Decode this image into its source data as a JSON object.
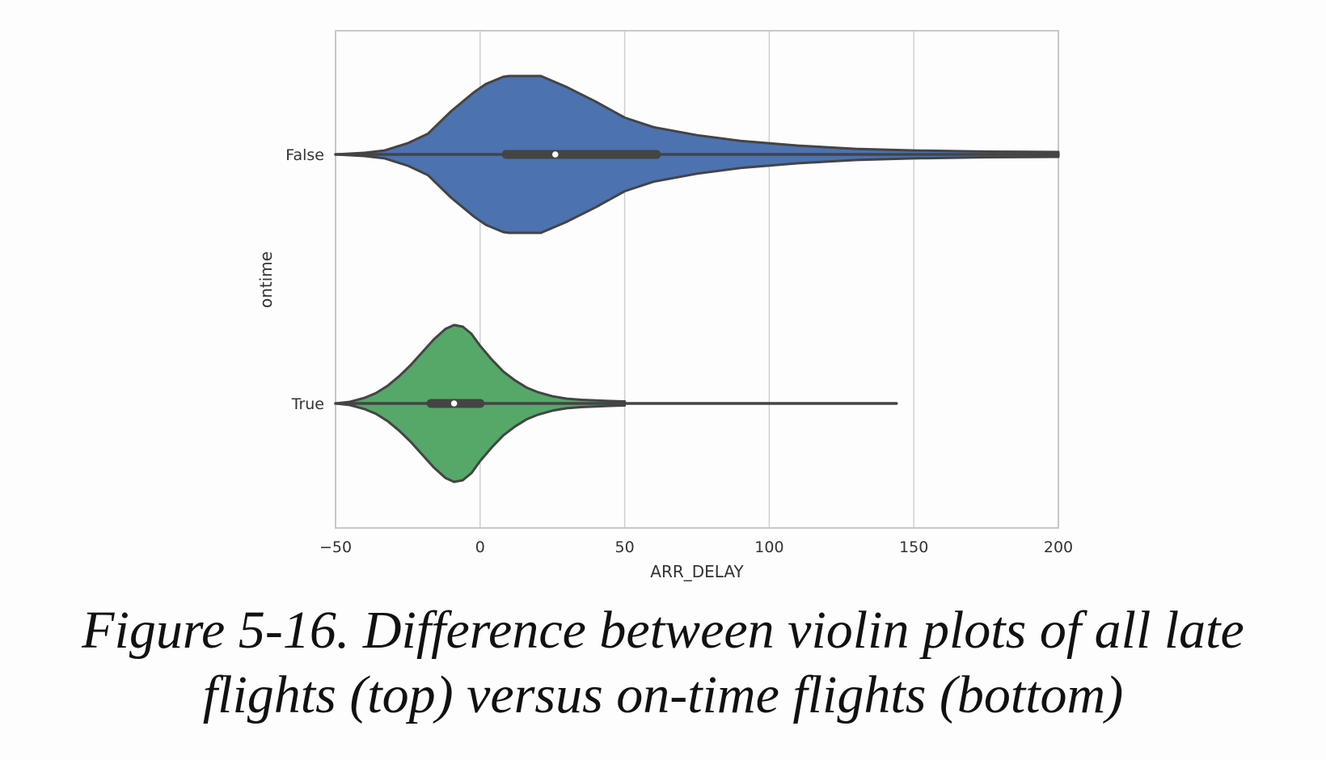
{
  "chart_data": {
    "type": "violin",
    "orientation": "horizontal",
    "xlabel": "ARR_DELAY",
    "ylabel": "ontime",
    "xlim": [
      -50,
      200
    ],
    "xticks": [
      {
        "value": -50,
        "label": "−50"
      },
      {
        "value": 0,
        "label": "0"
      },
      {
        "value": 50,
        "label": "50"
      },
      {
        "value": 100,
        "label": "100"
      },
      {
        "value": 150,
        "label": "150"
      },
      {
        "value": 200,
        "label": "200"
      }
    ],
    "grid": "vertical",
    "categories": [
      "False",
      "True"
    ],
    "series": [
      {
        "category": "False",
        "color": "#4c72b0",
        "min": -50,
        "max": 200,
        "q1": 9,
        "median": 26,
        "q3": 61,
        "density": [
          [
            -50,
            0.0
          ],
          [
            -40,
            0.02
          ],
          [
            -33,
            0.05
          ],
          [
            -25,
            0.14
          ],
          [
            -18,
            0.26
          ],
          [
            -10,
            0.54
          ],
          [
            -2,
            0.78
          ],
          [
            2,
            0.88
          ],
          [
            8,
            0.97
          ],
          [
            10,
            0.98
          ],
          [
            21,
            0.98
          ],
          [
            30,
            0.84
          ],
          [
            40,
            0.66
          ],
          [
            50,
            0.46
          ],
          [
            60,
            0.34
          ],
          [
            75,
            0.24
          ],
          [
            90,
            0.17
          ],
          [
            110,
            0.11
          ],
          [
            130,
            0.07
          ],
          [
            150,
            0.05
          ],
          [
            175,
            0.035
          ],
          [
            200,
            0.03
          ]
        ]
      },
      {
        "category": "True",
        "color": "#55a868",
        "min": -50,
        "max": 144,
        "q1": -17,
        "median": -9,
        "q3": 0,
        "density": [
          [
            -50,
            0.0
          ],
          [
            -45,
            0.02
          ],
          [
            -40,
            0.07
          ],
          [
            -36,
            0.13
          ],
          [
            -32,
            0.22
          ],
          [
            -28,
            0.34
          ],
          [
            -24,
            0.48
          ],
          [
            -20,
            0.64
          ],
          [
            -16,
            0.8
          ],
          [
            -12,
            0.93
          ],
          [
            -9,
            0.98
          ],
          [
            -6,
            0.96
          ],
          [
            -3,
            0.87
          ],
          [
            0,
            0.72
          ],
          [
            4,
            0.55
          ],
          [
            8,
            0.4
          ],
          [
            12,
            0.29
          ],
          [
            16,
            0.2
          ],
          [
            20,
            0.14
          ],
          [
            25,
            0.09
          ],
          [
            30,
            0.06
          ],
          [
            35,
            0.045
          ],
          [
            40,
            0.037
          ],
          [
            45,
            0.03
          ],
          [
            50,
            0.025
          ]
        ]
      }
    ]
  },
  "caption": {
    "line1": "Figure 5-16. Difference between violin plots of all late",
    "line2": "flights (top) versus on-time flights (bottom)"
  }
}
